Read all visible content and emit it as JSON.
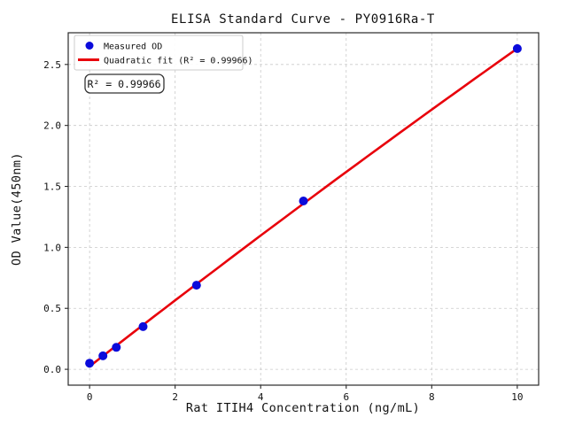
{
  "figure": {
    "title": "ELISA Standard Curve - PY0916Ra-T",
    "background": "#ffffff"
  },
  "chart_data": {
    "type": "scatter",
    "title": "ELISA Standard Curve - PY0916Ra-T",
    "xlabel": "Rat ITIH4 Concentration (ng/mL)",
    "ylabel": "OD Value(450nm)",
    "xlim": [
      -0.5,
      10.5
    ],
    "ylim": [
      -0.13,
      2.76
    ],
    "x_ticks": [
      "0",
      "2",
      "4",
      "6",
      "8",
      "10"
    ],
    "x_tick_values": [
      0,
      2,
      4,
      6,
      8,
      10
    ],
    "y_ticks": [
      "0.0",
      "0.5",
      "1.0",
      "1.5",
      "2.0",
      "2.5"
    ],
    "y_tick_values": [
      0,
      0.5,
      1.0,
      1.5,
      2.0,
      2.5
    ],
    "grid": true,
    "grid_style": "dashed",
    "legend": {
      "position": "upper-left",
      "entries": [
        "Measured OD",
        "Quadratic fit (R² = 0.99966)"
      ]
    },
    "annotation": "R² = 0.99966",
    "series": [
      {
        "name": "Measured OD",
        "type": "scatter",
        "marker": "circle",
        "color": "#0b0bdb",
        "x": [
          0,
          0.313,
          0.625,
          1.25,
          2.5,
          5,
          10
        ],
        "y": [
          0.05,
          0.11,
          0.18,
          0.35,
          0.69,
          1.38,
          2.63
        ]
      },
      {
        "name": "Quadratic fit (R² = 0.99966)",
        "type": "line",
        "color": "#e8000b",
        "fit_coefficients": {
          "a": -0.00125,
          "b": 0.2732,
          "c": 0.024
        },
        "x_range": [
          0,
          10
        ]
      }
    ],
    "r_squared": 0.99966,
    "colors": {
      "point": "#0b0bdb",
      "line": "#e8000b",
      "grid": "#c9c9c9",
      "frame": "#2a2a2a",
      "text": "#111111"
    }
  }
}
